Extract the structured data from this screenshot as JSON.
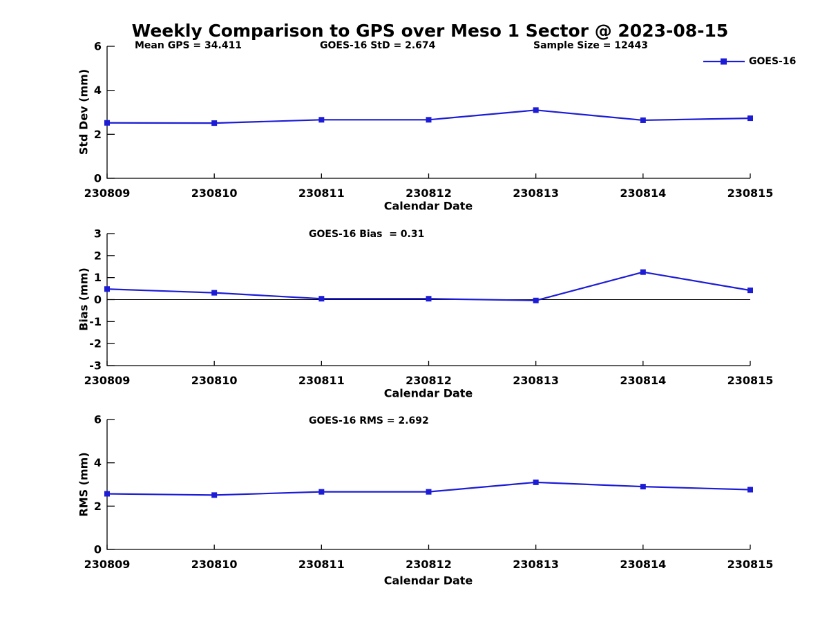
{
  "title": "Weekly Comparison to GPS over Meso 1 Sector @ 2023-08-15",
  "header_annotations": {
    "mean_gps": "Mean GPS = 34.411",
    "goes16_std": "GOES-16 StD = 2.674",
    "sample_size": "Sample Size = 12443"
  },
  "legend": {
    "label": "GOES-16",
    "marker": "square",
    "position": "top-right-outside"
  },
  "colors": {
    "series": "#1c1cd6",
    "axis": "#000000",
    "text": "#000000",
    "zero_line": "#000000",
    "background": "#ffffff"
  },
  "chart_data": [
    {
      "type": "line",
      "title": "",
      "ylabel": "Std Dev (mm)",
      "xlabel": "Calendar Date",
      "ylim": [
        0,
        6
      ],
      "yticks": [
        0,
        2,
        4,
        6
      ],
      "grid": false,
      "categories": [
        "230809",
        "230810",
        "230811",
        "230812",
        "230813",
        "230814",
        "230815"
      ],
      "series": [
        {
          "name": "GOES-16",
          "values": [
            2.52,
            2.51,
            2.66,
            2.66,
            3.1,
            2.64,
            2.73
          ]
        }
      ]
    },
    {
      "type": "line",
      "title": "GOES-16 Bias  = 0.31",
      "ylabel": "Bias (mm)",
      "xlabel": "Calendar Date",
      "ylim": [
        -3,
        3
      ],
      "yticks": [
        3,
        2,
        1,
        0,
        -1,
        -2,
        -3
      ],
      "zero_line": true,
      "grid": false,
      "categories": [
        "230809",
        "230810",
        "230811",
        "230812",
        "230813",
        "230814",
        "230815"
      ],
      "series": [
        {
          "name": "GOES-16",
          "values": [
            0.48,
            0.31,
            0.04,
            0.04,
            -0.04,
            1.25,
            0.42
          ]
        }
      ]
    },
    {
      "type": "line",
      "title": "GOES-16 RMS = 2.692",
      "ylabel": "RMS (mm)",
      "xlabel": "Calendar Date",
      "ylim": [
        0,
        6
      ],
      "yticks": [
        0,
        2,
        4,
        6
      ],
      "grid": false,
      "categories": [
        "230809",
        "230810",
        "230811",
        "230812",
        "230813",
        "230814",
        "230815"
      ],
      "series": [
        {
          "name": "GOES-16",
          "values": [
            2.57,
            2.51,
            2.66,
            2.66,
            3.1,
            2.9,
            2.76
          ]
        }
      ]
    }
  ]
}
